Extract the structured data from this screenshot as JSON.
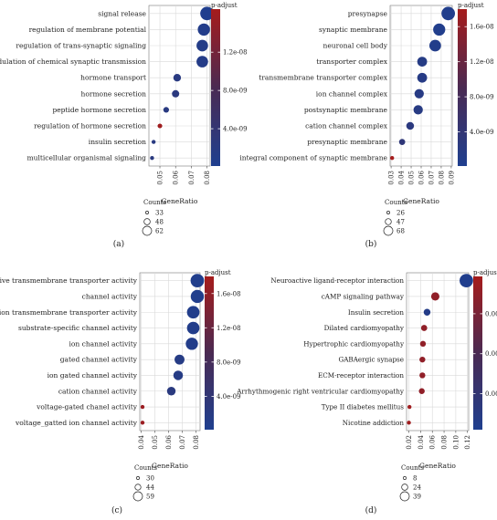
{
  "chart_data": [
    {
      "id": "a",
      "type": "scatter",
      "panel_label": "(a)",
      "categories": [
        "signal release",
        "regulation of membrane potential",
        "regulation of trans-synaptic signaling",
        "modulation of chemical synaptic transmission",
        "hormone transport",
        "hormone secretion",
        "peptide hormone secretion",
        "regulation of hormone secretion",
        "insulin secretion",
        "multicellular organismal signaling"
      ],
      "x": [
        0.08,
        0.078,
        0.077,
        0.077,
        0.061,
        0.06,
        0.054,
        0.05,
        0.046,
        0.045
      ],
      "count": [
        62,
        58,
        56,
        56,
        44,
        43,
        38,
        35,
        33,
        33
      ],
      "p_adjust": [
        3e-10,
        8e-10,
        1e-09,
        1.1e-09,
        2e-09,
        2.3e-09,
        2e-09,
        1.6e-08,
        2e-09,
        2.2e-09
      ],
      "xlabel": "GeneRatio",
      "xticks": [
        0.05,
        0.06,
        0.07,
        0.08
      ],
      "xlim": [
        0.043,
        0.082
      ],
      "colorbar": {
        "title": "p-adjust",
        "ticks": [
          {
            "value": 1.2e-08,
            "label": "1.2e-08"
          },
          {
            "value": 8e-09,
            "label": "8.0e-09"
          },
          {
            "value": 4e-09,
            "label": "4.0e-09"
          }
        ],
        "min": 1e-10,
        "max": 1.65e-08
      },
      "size_legend": {
        "title": "Counts",
        "items": [
          {
            "label": "33",
            "value": 33
          },
          {
            "label": "48",
            "value": 48
          },
          {
            "label": "62",
            "value": 62
          }
        ]
      },
      "grid": true
    },
    {
      "id": "b",
      "type": "scatter",
      "panel_label": "(b)",
      "categories": [
        "presynapse",
        "synaptic membrane",
        "neuronal cell body",
        "transporter complex",
        "transmembrane transporter complex",
        "ion channel complex",
        "postsynaptic membrane",
        "cation channel complex",
        "presynaptic membrane",
        "integral component of synaptic membrane"
      ],
      "x": [
        0.087,
        0.078,
        0.074,
        0.061,
        0.061,
        0.058,
        0.057,
        0.049,
        0.041,
        0.031
      ],
      "count": [
        68,
        62,
        60,
        52,
        52,
        50,
        50,
        43,
        36,
        27
      ],
      "p_adjust": [
        5e-10,
        6e-10,
        8e-10,
        1.5e-09,
        1.6e-09,
        1.7e-09,
        1.8e-09,
        2.5e-09,
        3.5e-09,
        1.8e-08
      ],
      "xlabel": "GeneRatio",
      "xticks": [
        0.03,
        0.04,
        0.05,
        0.06,
        0.07,
        0.08,
        0.09
      ],
      "xlim": [
        0.029,
        0.091
      ],
      "colorbar": {
        "title": "p-adjust",
        "ticks": [
          {
            "value": 1.6e-08,
            "label": "1.6e-08"
          },
          {
            "value": 1.2e-08,
            "label": "1.2e-08"
          },
          {
            "value": 8e-09,
            "label": "8.0e-09"
          },
          {
            "value": 4e-09,
            "label": "4.0e-09"
          }
        ],
        "min": 1e-10,
        "max": 1.8e-08
      },
      "size_legend": {
        "title": "Counts",
        "items": [
          {
            "label": "26",
            "value": 26
          },
          {
            "label": "47",
            "value": 47
          },
          {
            "label": "68",
            "value": 68
          }
        ]
      },
      "grid": true
    },
    {
      "id": "c",
      "type": "scatter",
      "panel_label": "(c)",
      "categories": [
        "passive transmembrane transporter activity",
        "channel activity",
        "metal ion transmembrane transporter activity",
        "substrate-specific channel activity",
        "ion channel activity",
        "gated channel activity",
        "ion gated channel activity",
        "cation channel activity",
        "voltage-gated chanel activity",
        "voltage_gatted ion channel activity"
      ],
      "x": [
        0.081,
        0.081,
        0.078,
        0.078,
        0.077,
        0.068,
        0.067,
        0.062,
        0.041,
        0.041
      ],
      "count": [
        59,
        58,
        56,
        56,
        55,
        48,
        47,
        44,
        30,
        30
      ],
      "p_adjust": [
        5e-10,
        6e-10,
        7e-10,
        8e-10,
        9e-10,
        1.5e-09,
        1.5e-09,
        2.4e-09,
        1.7e-08,
        1.7e-08
      ],
      "xlabel": "GeneRatio",
      "xticks": [
        0.04,
        0.05,
        0.06,
        0.07,
        0.08
      ],
      "xlim": [
        0.039,
        0.083
      ],
      "colorbar": {
        "title": "p-adjust",
        "ticks": [
          {
            "value": 1.6e-08,
            "label": "1.6e-08"
          },
          {
            "value": 1.2e-08,
            "label": "1.2e-08"
          },
          {
            "value": 8e-09,
            "label": "8.0e-09"
          },
          {
            "value": 4e-09,
            "label": "4.0e-09"
          }
        ],
        "min": 1e-10,
        "max": 1.8e-08
      },
      "size_legend": {
        "title": "Counts",
        "items": [
          {
            "label": "30",
            "value": 30
          },
          {
            "label": "44",
            "value": 44
          },
          {
            "label": "59",
            "value": 59
          }
        ]
      },
      "grid": true
    },
    {
      "id": "d",
      "type": "scatter",
      "panel_label": "(d)",
      "categories": [
        "Neuroactive ligand-receptor interaction",
        "cAMP signaling pathway",
        "Insulin secretion",
        "Dilated cardiomyopathy",
        "Hypertrophic cardiomyopathy",
        "GABAergic synapse",
        "ECM-receptor interaction",
        "Arrhythmogenic right ventricular cardiomyopathy",
        "Type II diabetes mellitus",
        "Nicotine addiction"
      ],
      "x": [
        0.118,
        0.065,
        0.051,
        0.046,
        0.044,
        0.043,
        0.043,
        0.042,
        0.021,
        0.02
      ],
      "count": [
        39,
        22,
        17,
        15,
        14,
        14,
        14,
        14,
        8,
        8
      ],
      "p_adjust": [
        0.0005,
        0.0105,
        0.001,
        0.0105,
        0.0105,
        0.0105,
        0.0105,
        0.0105,
        0.0115,
        0.0115
      ],
      "xlabel": "GeneRatio",
      "xticks": [
        0.02,
        0.04,
        0.06,
        0.08,
        0.1,
        0.12
      ],
      "xticklabels": [
        "0.02",
        "0.04",
        "0.06",
        "0.08",
        "0.10",
        "0.12"
      ],
      "xlim": [
        0.016,
        0.122
      ],
      "colorbar": {
        "title": "p-adjust",
        "ticks": [
          {
            "value": 0.009,
            "label": "0.009"
          },
          {
            "value": 0.006,
            "label": "0.006"
          },
          {
            "value": 0.003,
            "label": "0.003"
          }
        ],
        "min": 0.0003,
        "max": 0.0118
      },
      "size_legend": {
        "title": "Counts",
        "items": [
          {
            "label": "8",
            "value": 8
          },
          {
            "label": "24",
            "value": 24
          },
          {
            "label": "39",
            "value": 39
          }
        ]
      },
      "grid": true
    }
  ],
  "colors": {
    "low": "#1f3f8f",
    "mid": "#4a2a52",
    "high": "#a51c1c",
    "panel_bg": "#ffffff",
    "grid": "#d9d9d9",
    "frame": "#777777"
  }
}
